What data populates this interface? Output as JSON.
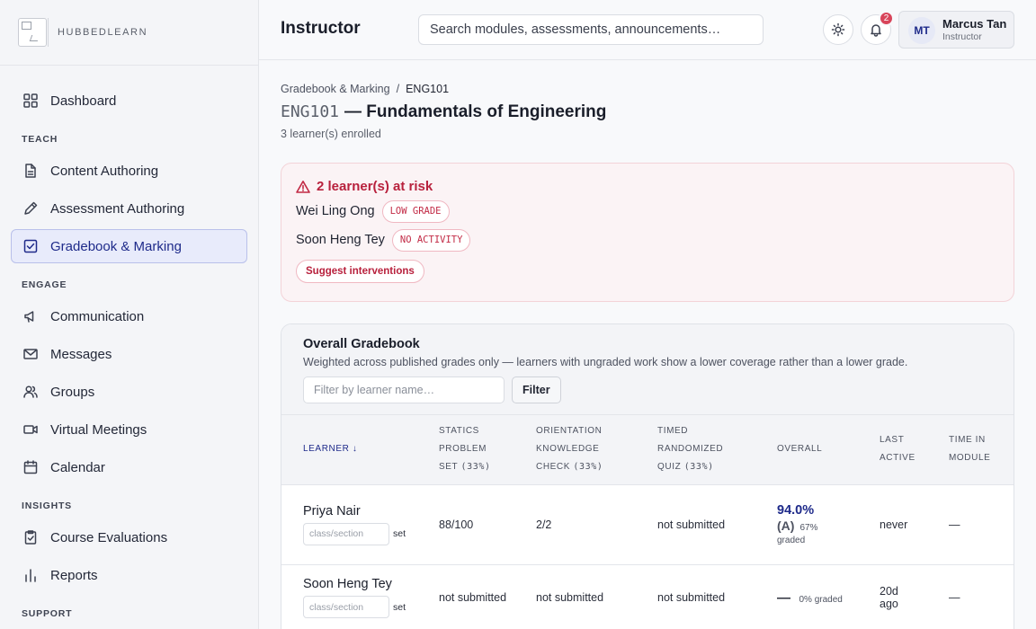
{
  "brand": {
    "name": "HUBBEDLEARN"
  },
  "sidebar": {
    "top_items": [
      {
        "label": "Dashboard",
        "icon": "grid-icon"
      }
    ],
    "sections": [
      {
        "title": "TEACH",
        "items": [
          {
            "label": "Content Authoring",
            "icon": "document-icon"
          },
          {
            "label": "Assessment Authoring",
            "icon": "pencil-icon"
          },
          {
            "label": "Gradebook & Marking",
            "icon": "checkbox-icon",
            "active": true
          }
        ]
      },
      {
        "title": "ENGAGE",
        "items": [
          {
            "label": "Communication",
            "icon": "megaphone-icon"
          },
          {
            "label": "Messages",
            "icon": "mail-icon"
          },
          {
            "label": "Groups",
            "icon": "users-icon"
          },
          {
            "label": "Virtual Meetings",
            "icon": "video-icon"
          },
          {
            "label": "Calendar",
            "icon": "calendar-icon"
          }
        ]
      },
      {
        "title": "INSIGHTS",
        "items": [
          {
            "label": "Course Evaluations",
            "icon": "clipboard-check-icon"
          },
          {
            "label": "Reports",
            "icon": "bar-chart-icon"
          }
        ]
      },
      {
        "title": "SUPPORT",
        "items": []
      }
    ]
  },
  "header": {
    "title": "Instructor",
    "search_placeholder": "Search modules, assessments, announcements…",
    "notification_count": "2",
    "user": {
      "initials": "MT",
      "name": "Marcus Tan",
      "role": "Instructor"
    }
  },
  "breadcrumb": {
    "parent": "Gradebook & Marking",
    "separator": "/",
    "current": "ENG101"
  },
  "course": {
    "code": "ENG101",
    "title": "— Fundamentals of Engineering",
    "enrolled": "3 learner(s) enrolled"
  },
  "risk": {
    "heading": "2 learner(s) at risk",
    "learners": [
      {
        "name": "Wei Ling Ong",
        "tag": "LOW GRADE"
      },
      {
        "name": "Soon Heng Tey",
        "tag": "NO ACTIVITY"
      }
    ],
    "action_label": "Suggest interventions"
  },
  "gradebook": {
    "title": "Overall Gradebook",
    "description": "Weighted across published grades only — learners with ungraded work show a lower coverage rather than a lower grade.",
    "filter_placeholder": "Filter by learner name…",
    "filter_button": "Filter",
    "columns": {
      "learner": "LEARNER ↓",
      "statics": {
        "l1": "STATICS",
        "l2": "PROBLEM",
        "l3": "SET",
        "weight": "(33%)"
      },
      "orientation": {
        "l1": "ORIENTATION",
        "l2": "KNOWLEDGE",
        "l3": "CHECK",
        "weight": "(33%)"
      },
      "timed": {
        "l1": "TIMED",
        "l2": "RANDOMIZED",
        "l3": "QUIZ",
        "weight": "(33%)"
      },
      "overall": "OVERALL",
      "last_active": {
        "l1": "LAST",
        "l2": "ACTIVE"
      },
      "time_in_module": {
        "l1": "TIME IN",
        "l2": "MODULE"
      }
    },
    "section_placeholder": "class/section",
    "set_label": "set",
    "rows": [
      {
        "name": "Priya Nair",
        "statics": "88/100",
        "orientation": "2/2",
        "timed": "not submitted",
        "overall_pct": "94.0%",
        "overall_letter": "(A)",
        "coverage_pct": "67%",
        "coverage_label": "graded",
        "last_active": "never",
        "time_in_module": "—"
      },
      {
        "name": "Soon Heng Tey",
        "statics": "not submitted",
        "orientation": "not submitted",
        "timed": "not submitted",
        "overall_dash": "—",
        "coverage_text": "0% graded",
        "last_active_l1": "20d",
        "last_active_l2": "ago",
        "time_in_module": "—"
      }
    ]
  }
}
